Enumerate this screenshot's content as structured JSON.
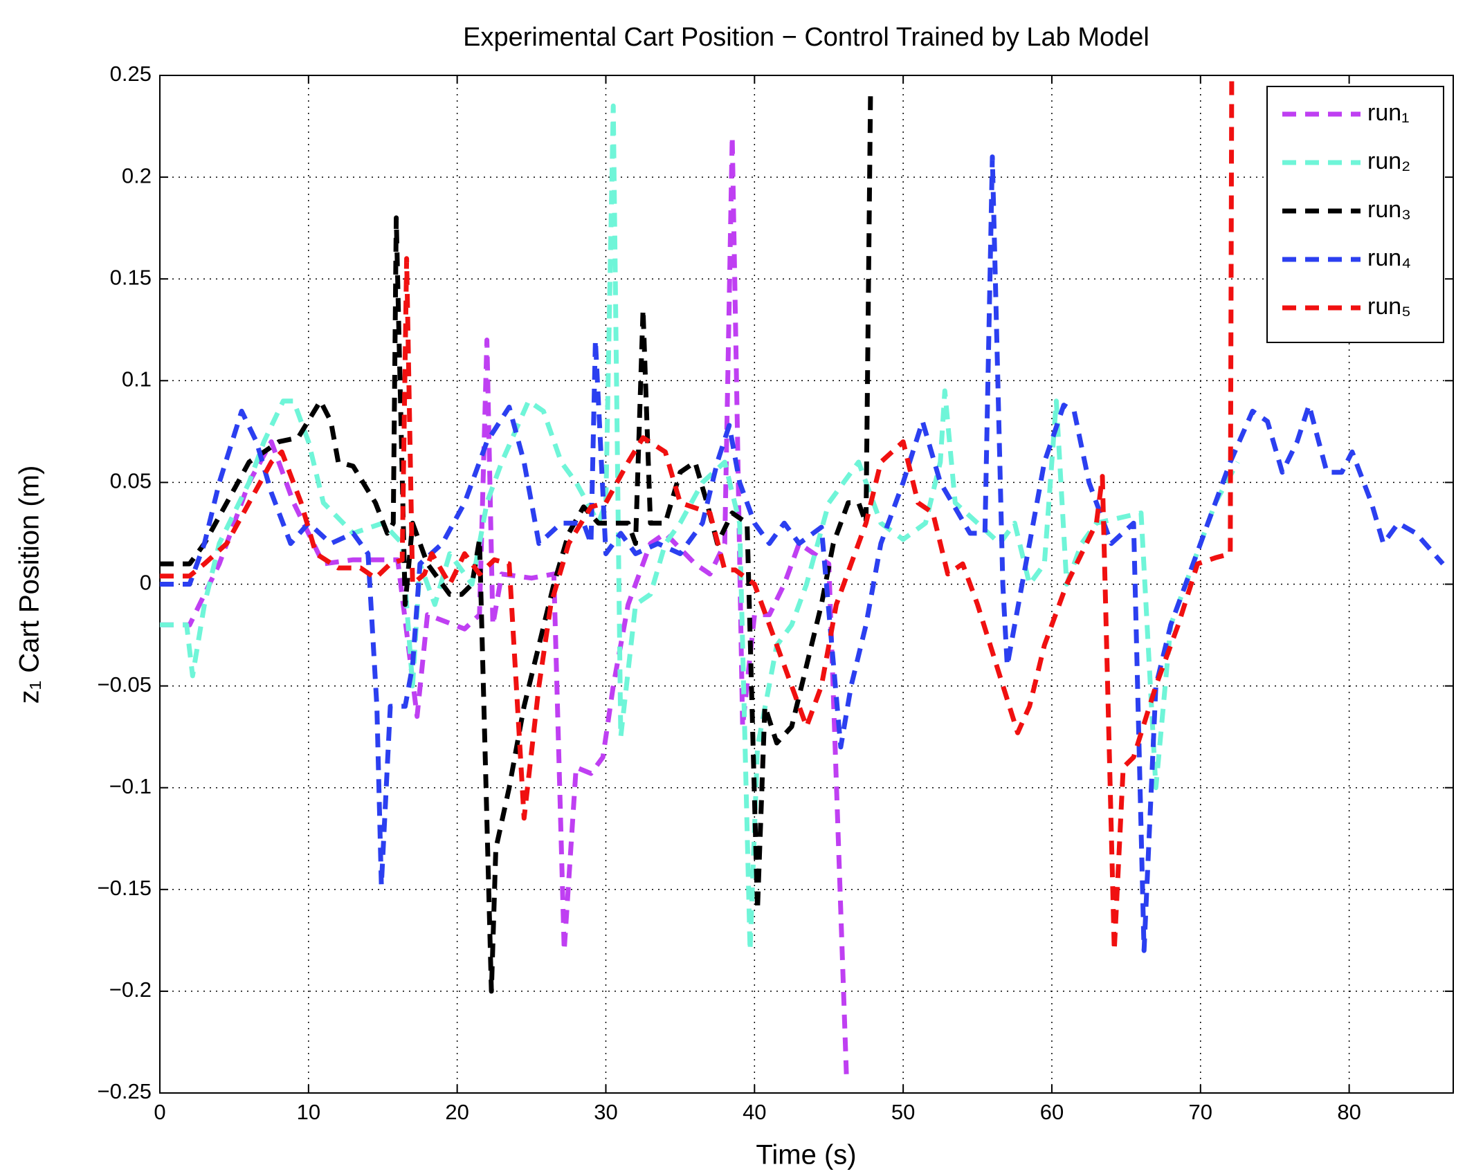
{
  "chart_data": {
    "type": "line",
    "title": "Experimental Cart Position − Control Trained by Lab Model",
    "x_label": "Time (s)",
    "y_label": "z₁ Cart Position (m)",
    "xlim": [
      0,
      87
    ],
    "xticks": [
      0,
      10,
      20,
      30,
      40,
      50,
      60,
      70,
      80
    ],
    "ylim": [
      -0.25,
      0.25
    ],
    "yticks": [
      {
        "value": -0.25,
        "label": "−0.25"
      },
      {
        "value": -0.2,
        "label": "−0.2"
      },
      {
        "value": -0.15,
        "label": "−0.15"
      },
      {
        "value": -0.1,
        "label": "−0.1"
      },
      {
        "value": -0.05,
        "label": "−0.05"
      },
      0,
      0.05,
      0.1,
      0.15,
      0.2,
      0.25
    ],
    "grid": true,
    "line_style": "dashed",
    "legend": "upper right",
    "series": [
      {
        "name": "run₁",
        "color": "#bf3ff2",
        "x": [
          0,
          2,
          4,
          6,
          7.5,
          9,
          11,
          13,
          16,
          17.3,
          18,
          20.5,
          21.5,
          22,
          22.4,
          23,
          25,
          26.5,
          27.2,
          28,
          29,
          29.8,
          30.5,
          31.5,
          33,
          34,
          36,
          37,
          38,
          38.5,
          39.2,
          40,
          41,
          42,
          43,
          45,
          46.2
        ],
        "values": [
          -0.02,
          -0.02,
          0.01,
          0.05,
          0.07,
          0.04,
          0.01,
          0.012,
          0.012,
          -0.065,
          -0.015,
          -0.022,
          -0.015,
          0.12,
          -0.02,
          0.005,
          0.003,
          0.005,
          -0.18,
          -0.09,
          -0.093,
          -0.085,
          -0.05,
          -0.01,
          0.02,
          0.025,
          0.01,
          0.005,
          0.02,
          0.22,
          -0.07,
          -0.015,
          -0.015,
          0,
          0.02,
          0.01,
          -0.245
        ]
      },
      {
        "name": "run₂",
        "color": "#6ff5d8",
        "x": [
          0,
          1.8,
          2.2,
          3,
          4,
          6,
          7,
          8.3,
          9,
          10,
          11,
          13,
          15,
          16.3,
          17,
          17.5,
          18.5,
          19.5,
          21,
          22,
          23,
          24.8,
          25.8,
          27,
          28,
          29.5,
          30,
          30.5,
          31,
          32,
          33,
          34,
          35,
          36.5,
          38,
          39,
          39.7,
          40.2,
          41.5,
          42.5,
          43.5,
          45,
          47,
          48.5,
          50,
          51.5,
          52.5,
          52.8,
          53.5,
          55,
          56.5,
          57.5,
          58.5,
          59.5,
          60.3,
          61,
          62,
          63,
          66,
          67,
          68,
          69,
          70,
          71,
          72.5
        ],
        "values": [
          -0.02,
          -0.02,
          -0.045,
          -0.01,
          0.02,
          0.05,
          0.07,
          0.09,
          0.09,
          0.07,
          0.04,
          0.025,
          0.03,
          0.02,
          -0.05,
          0.01,
          -0.01,
          0.015,
          0,
          0.04,
          0.06,
          0.09,
          0.085,
          0.06,
          0.05,
          0.03,
          0.04,
          0.235,
          -0.075,
          -0.01,
          -0.005,
          0.02,
          0.03,
          0.05,
          0.06,
          0.03,
          -0.18,
          -0.08,
          -0.03,
          -0.02,
          0,
          0.04,
          0.06,
          0.03,
          0.022,
          0.03,
          0.06,
          0.095,
          0.04,
          0.03,
          0.02,
          0.03,
          0,
          0.01,
          0.09,
          0,
          0.02,
          0.03,
          0.035,
          -0.1,
          -0.02,
          0,
          0.02,
          0.04,
          0.06
        ]
      },
      {
        "name": "run₃",
        "color": "#000000",
        "x": [
          0,
          2,
          3,
          4.5,
          6,
          8,
          9.3,
          10.8,
          11.5,
          12,
          13,
          14.5,
          15.3,
          15.7,
          15.9,
          16.5,
          17,
          18,
          19.5,
          20.3,
          21,
          21.5,
          22.3,
          22.6,
          23.5,
          24.5,
          25.5,
          26.5,
          27.5,
          28.5,
          29.5,
          31.5,
          32,
          32.5,
          33,
          34,
          35,
          36,
          36.8,
          37.5,
          38.5,
          39.5,
          40.2,
          40.7,
          41.5,
          42.5,
          43.5,
          44.5,
          45.3,
          46.3,
          47,
          47.5,
          47.8
        ],
        "values": [
          0.01,
          0.01,
          0.02,
          0.04,
          0.06,
          0.07,
          0.072,
          0.09,
          0.08,
          0.06,
          0.058,
          0.04,
          0.025,
          0.03,
          0.18,
          -0.01,
          0.03,
          0.01,
          -0.005,
          -0.005,
          0,
          0.022,
          -0.2,
          -0.13,
          -0.1,
          -0.06,
          -0.03,
          0,
          0.025,
          0.038,
          0.03,
          0.03,
          0.02,
          0.135,
          0.03,
          0.03,
          0.055,
          0.06,
          0.04,
          0.02,
          0.035,
          0.03,
          -0.16,
          -0.06,
          -0.078,
          -0.07,
          -0.04,
          -0.01,
          0.02,
          0.04,
          0.04,
          0.03,
          0.24
        ]
      },
      {
        "name": "run₄",
        "color": "#2b3ff0",
        "x": [
          0,
          2,
          3,
          4,
          5.5,
          6.5,
          7.5,
          8.8,
          10,
          11.5,
          13,
          14,
          14.6,
          14.9,
          15.5,
          16.5,
          17,
          17.5,
          19,
          20.5,
          22,
          23.5,
          24.5,
          25.5,
          27,
          28.5,
          29,
          29.3,
          30,
          31,
          32,
          33.5,
          35,
          36.5,
          37.5,
          38.3,
          39,
          40,
          41,
          42,
          43,
          44.5,
          45.8,
          46.5,
          47.5,
          48.5,
          50,
          51.3,
          52.5,
          54.5,
          55.5,
          56,
          56.7,
          57,
          58,
          59.5,
          60.8,
          61.5,
          62.5,
          64,
          65.5,
          66.2,
          67,
          68,
          69.5,
          70.5,
          72,
          73.5,
          74.5,
          75.5,
          76.5,
          77.3,
          78.5,
          79.5,
          80.2,
          81.5,
          82.3,
          83.3,
          84.5,
          86.3
        ],
        "values": [
          0,
          0,
          0.02,
          0.05,
          0.085,
          0.07,
          0.045,
          0.02,
          0.03,
          0.02,
          0.025,
          0.015,
          -0.06,
          -0.148,
          -0.06,
          -0.06,
          -0.04,
          0.01,
          0.02,
          0.04,
          0.07,
          0.087,
          0.06,
          0.02,
          0.03,
          0.03,
          0.02,
          0.12,
          0.015,
          0.025,
          0.015,
          0.02,
          0.015,
          0.03,
          0.06,
          0.078,
          0.05,
          0.03,
          0.02,
          0.03,
          0.02,
          0.028,
          -0.08,
          -0.05,
          -0.02,
          0.02,
          0.05,
          0.08,
          0.05,
          0.025,
          0.025,
          0.21,
          0,
          -0.04,
          0,
          0.06,
          0.088,
          0.085,
          0.05,
          0.02,
          0.03,
          -0.18,
          -0.05,
          -0.02,
          0.01,
          0.03,
          0.06,
          0.085,
          0.08,
          0.055,
          0.07,
          0.088,
          0.055,
          0.055,
          0.065,
          0.04,
          0.02,
          0.03,
          0.025,
          0.01
        ]
      },
      {
        "name": "run₅",
        "color": "#f01010",
        "x": [
          0,
          2,
          3,
          4.5,
          6,
          7.5,
          8.2,
          9.5,
          10.5,
          12,
          13.5,
          14.5,
          15.5,
          16.3,
          16.6,
          17,
          17.8,
          18.3,
          19.5,
          20.5,
          21.5,
          22.5,
          23.5,
          24.5,
          25.5,
          26.3,
          27.5,
          29,
          30,
          31.5,
          32.5,
          34,
          35,
          37,
          38,
          38.7,
          40,
          41,
          42.5,
          43.5,
          44.5,
          45.5,
          46.5,
          47.5,
          48.5,
          50,
          51,
          52,
          53,
          54,
          55,
          56.5,
          57.7,
          58.5,
          59.5,
          61,
          63,
          63.4,
          64.2,
          64.8,
          65.5,
          67,
          68.5,
          69.8,
          71,
          72,
          72.1
        ],
        "values": [
          0.004,
          0.004,
          0.01,
          0.02,
          0.04,
          0.06,
          0.065,
          0.04,
          0.015,
          0.008,
          0.008,
          0.003,
          0.01,
          0.012,
          0.16,
          0,
          0.005,
          0.015,
          0,
          0.015,
          0.005,
          0.012,
          0.01,
          -0.115,
          -0.05,
          -0.01,
          0.02,
          0.038,
          0.04,
          0.06,
          0.072,
          0.065,
          0.04,
          0.035,
          0.007,
          0.007,
          0,
          -0.02,
          -0.05,
          -0.07,
          -0.05,
          -0.01,
          0.01,
          0.03,
          0.06,
          0.07,
          0.04,
          0.035,
          0.005,
          0.01,
          -0.01,
          -0.045,
          -0.073,
          -0.06,
          -0.03,
          0,
          0.03,
          0.053,
          -0.18,
          -0.09,
          -0.085,
          -0.05,
          -0.02,
          0.01,
          0.013,
          0.015,
          0.25
        ]
      }
    ]
  }
}
